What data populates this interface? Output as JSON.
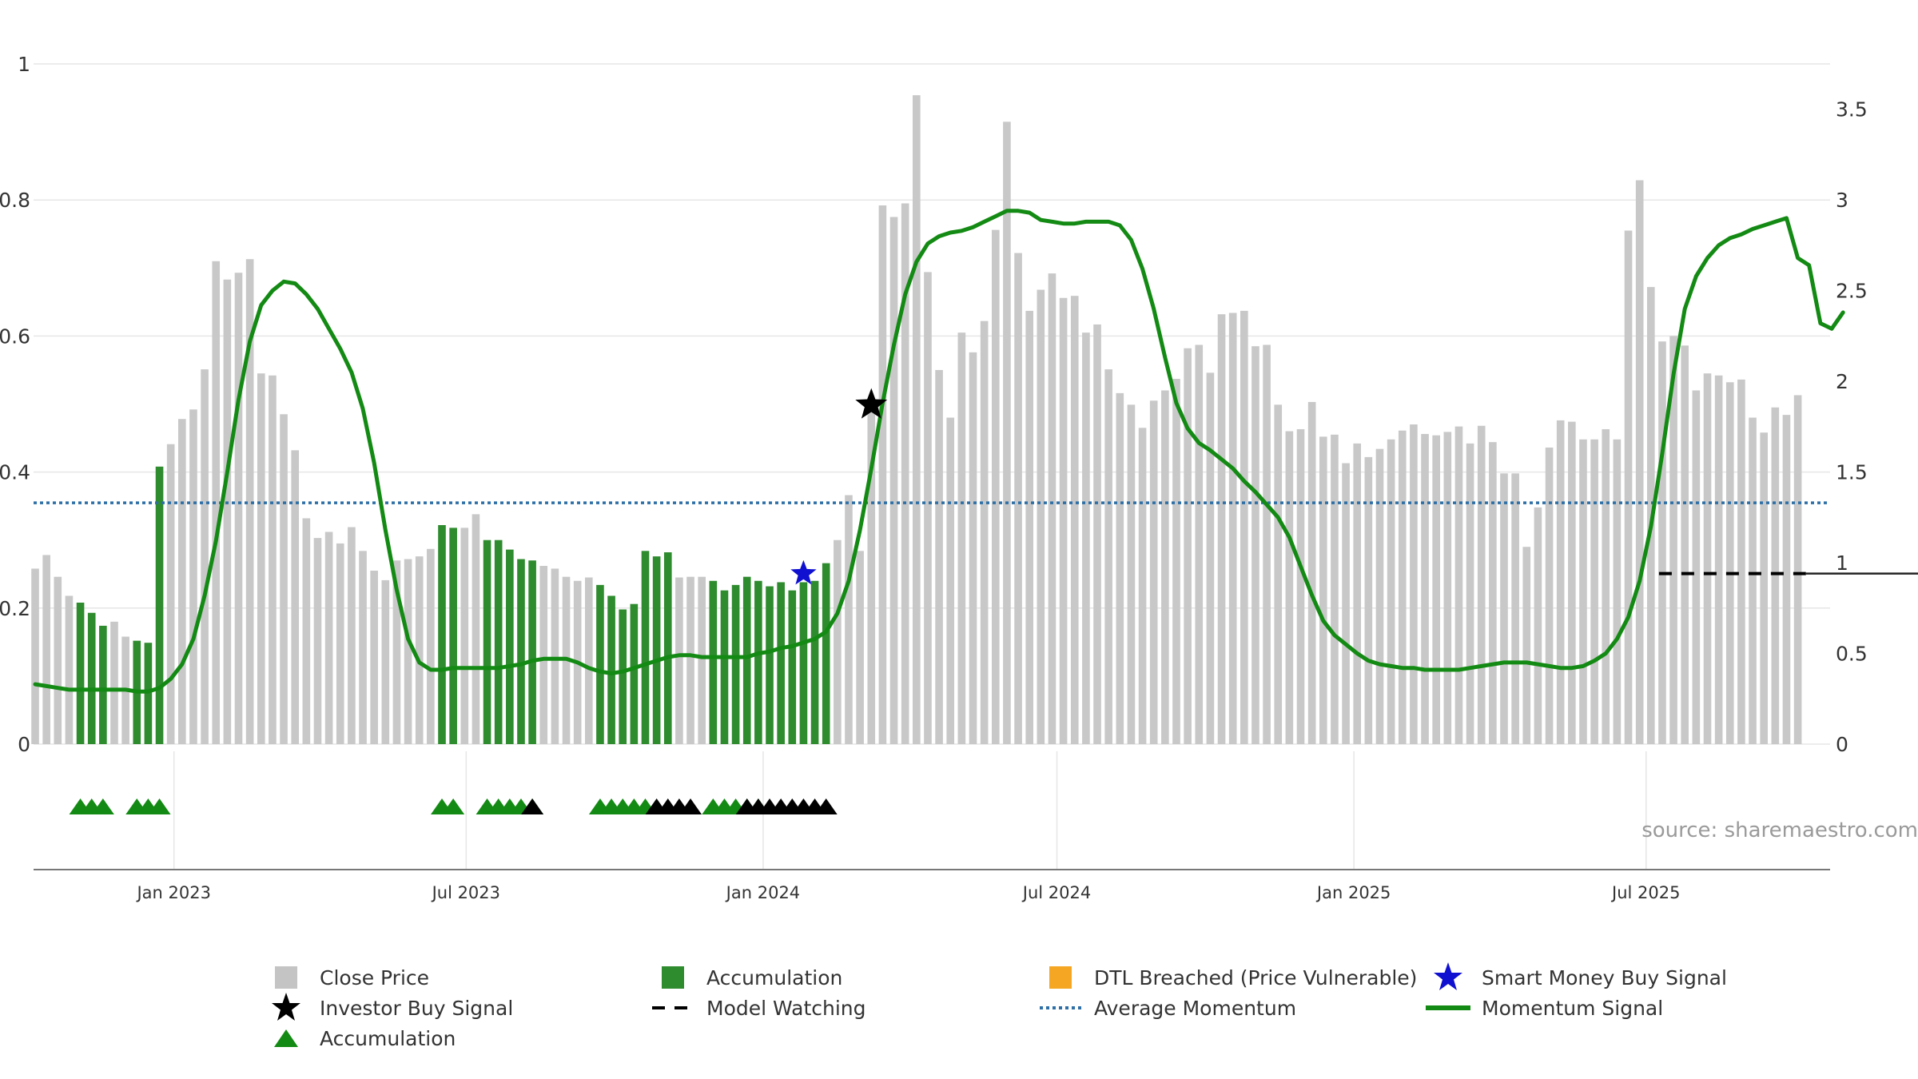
{
  "colors": {
    "close_bar": "#c8c8c8",
    "accum_bar": "#2e8b2e",
    "momentum": "#138a13",
    "average": "#2d6fa6",
    "watching": "#000000",
    "dtl": "#f5a623",
    "smart_money": "#1010d0",
    "investor_star": "#000000",
    "tri_green": "#138a13",
    "tri_black": "#000000",
    "grid": "#e6e6e6",
    "axis_text": "#333333"
  },
  "source_text": "source: sharemaestro.com",
  "legend": {
    "close_price": "Close Price",
    "accumulation_bar": "Accumulation",
    "dtl_breached": "DTL Breached (Price Vulnerable)",
    "smart_money": "Smart Money Buy Signal",
    "investor_buy": "Investor Buy Signal",
    "model_watching": "Model Watching",
    "average_momentum": "Average Momentum",
    "momentum_signal": "Momentum Signal",
    "accumulation_marker": "Accumulation"
  },
  "chart_data": {
    "type": "bar",
    "title": "",
    "x_start": "2022-10-07",
    "x_tick_labels": [
      "Jan 2023",
      "Jul 2023",
      "Jan 2024",
      "Jul 2024",
      "Jan 2025",
      "Jul 2025"
    ],
    "x_tick_dates": [
      "2023-01-01",
      "2023-07-01",
      "2024-01-01",
      "2024-07-01",
      "2025-01-01",
      "2025-07-01"
    ],
    "x_range": [
      "2022-10-06",
      "2025-10-23"
    ],
    "y_left_ticks": [
      "0",
      "0.2",
      "0.4",
      "0.6",
      "0.8",
      "1"
    ],
    "y_left_range": [
      0,
      1
    ],
    "y_right_ticks": [
      "0",
      "0.5",
      "1",
      "1.5",
      "2",
      "2.5",
      "3",
      "3.5"
    ],
    "y_right_range": [
      0,
      3.75
    ],
    "close_price": [
      0.258,
      0.278,
      0.246,
      0.218,
      0.208,
      0.193,
      0.174,
      0.18,
      0.158,
      0.152,
      0.149,
      0.408,
      0.441,
      0.478,
      0.492,
      0.551,
      0.71,
      0.683,
      0.693,
      0.713,
      0.545,
      0.542,
      0.485,
      0.432,
      0.332,
      0.303,
      0.312,
      0.295,
      0.319,
      0.284,
      0.255,
      0.241,
      0.27,
      0.272,
      0.276,
      0.287,
      0.322,
      0.318,
      0.318,
      0.338,
      0.3,
      0.3,
      0.286,
      0.272,
      0.27,
      0.262,
      0.258,
      0.246,
      0.24,
      0.245,
      0.234,
      0.218,
      0.198,
      0.206,
      0.284,
      0.276,
      0.282,
      0.245,
      0.246,
      0.246,
      0.24,
      0.226,
      0.234,
      0.246,
      0.24,
      0.232,
      0.238,
      0.226,
      0.238,
      0.24,
      0.266,
      0.3,
      0.366,
      0.284,
      0.5,
      0.792,
      0.775,
      0.795,
      0.954,
      0.694,
      0.55,
      0.48,
      0.605,
      0.576,
      0.622,
      0.756,
      0.915,
      0.722,
      0.637,
      0.668,
      0.692,
      0.656,
      0.659,
      0.605,
      0.617,
      0.551,
      0.516,
      0.499,
      0.465,
      0.505,
      0.52,
      0.537,
      0.582,
      0.587,
      0.546,
      0.632,
      0.634,
      0.637,
      0.585,
      0.587,
      0.499,
      0.46,
      0.463,
      0.503,
      0.452,
      0.455,
      0.413,
      0.442,
      0.422,
      0.434,
      0.448,
      0.461,
      0.47,
      0.456,
      0.454,
      0.459,
      0.467,
      0.442,
      0.468,
      0.444,
      0.398,
      0.398,
      0.29,
      0.348,
      0.436,
      0.476,
      0.474,
      0.448,
      0.448,
      0.463,
      0.448,
      0.755,
      0.829,
      0.672,
      0.592,
      0.6,
      0.586,
      0.52,
      0.545,
      0.542,
      0.532,
      0.536,
      0.48,
      0.458,
      0.495,
      0.484,
      0.513
    ],
    "accumulation_bars": [
      4,
      5,
      6,
      9,
      10,
      11,
      36,
      37,
      40,
      41,
      42,
      43,
      44,
      50,
      51,
      52,
      53,
      54,
      55,
      56,
      60,
      61,
      62,
      63,
      64,
      65,
      66,
      67,
      68,
      69,
      70
    ],
    "momentum_signal": [
      0.33,
      0.32,
      0.31,
      0.3,
      0.3,
      0.3,
      0.3,
      0.3,
      0.3,
      0.29,
      0.29,
      0.31,
      0.36,
      0.44,
      0.58,
      0.82,
      1.12,
      1.5,
      1.9,
      2.22,
      2.42,
      2.5,
      2.55,
      2.54,
      2.48,
      2.4,
      2.29,
      2.18,
      2.05,
      1.85,
      1.55,
      1.18,
      0.85,
      0.58,
      0.45,
      0.41,
      0.41,
      0.42,
      0.42,
      0.42,
      0.42,
      0.42,
      0.43,
      0.44,
      0.46,
      0.47,
      0.47,
      0.47,
      0.45,
      0.42,
      0.4,
      0.39,
      0.4,
      0.42,
      0.44,
      0.46,
      0.48,
      0.49,
      0.49,
      0.48,
      0.48,
      0.48,
      0.48,
      0.48,
      0.5,
      0.51,
      0.53,
      0.54,
      0.56,
      0.58,
      0.62,
      0.72,
      0.9,
      1.18,
      1.52,
      1.88,
      2.2,
      2.48,
      2.66,
      2.76,
      2.8,
      2.82,
      2.83,
      2.85,
      2.88,
      2.91,
      2.94,
      2.94,
      2.93,
      2.89,
      2.88,
      2.87,
      2.87,
      2.88,
      2.88,
      2.88,
      2.86,
      2.78,
      2.62,
      2.4,
      2.13,
      1.88,
      1.74,
      1.66,
      1.62,
      1.57,
      1.52,
      1.45,
      1.39,
      1.32,
      1.25,
      1.14,
      0.98,
      0.82,
      0.68,
      0.6,
      0.55,
      0.5,
      0.46,
      0.44,
      0.43,
      0.42,
      0.42,
      0.41,
      0.41,
      0.41,
      0.41,
      0.42,
      0.43,
      0.44,
      0.45,
      0.45,
      0.45,
      0.44,
      0.43,
      0.42,
      0.42,
      0.43,
      0.46,
      0.5,
      0.58,
      0.7,
      0.9,
      1.2,
      1.6,
      2.04,
      2.4,
      2.58,
      2.68,
      2.75,
      2.79,
      2.81,
      2.84,
      2.86,
      2.88,
      2.9,
      2.68,
      2.64,
      2.32,
      2.29,
      2.38
    ],
    "average_momentum": 1.33,
    "model_watching": {
      "value": 0.94,
      "from": 1007,
      "to": 1098
    },
    "baseline_line": {
      "value": 0.94,
      "from": 1098,
      "to": 2247
    },
    "smart_money_signal": {
      "date": "2024-01-26",
      "value": 0.94
    },
    "investor_buy_signal": {
      "date": "2024-03-08",
      "value": 1.87
    },
    "triangles": {
      "green": [
        4,
        5,
        6,
        9,
        10,
        11,
        36,
        37,
        40,
        41,
        42,
        43,
        44,
        50,
        51,
        52,
        53,
        54,
        60,
        61,
        62,
        63,
        64
      ],
      "black": [
        44,
        55,
        56,
        57,
        58,
        63,
        64,
        65,
        66,
        67,
        68,
        69,
        70
      ]
    }
  }
}
